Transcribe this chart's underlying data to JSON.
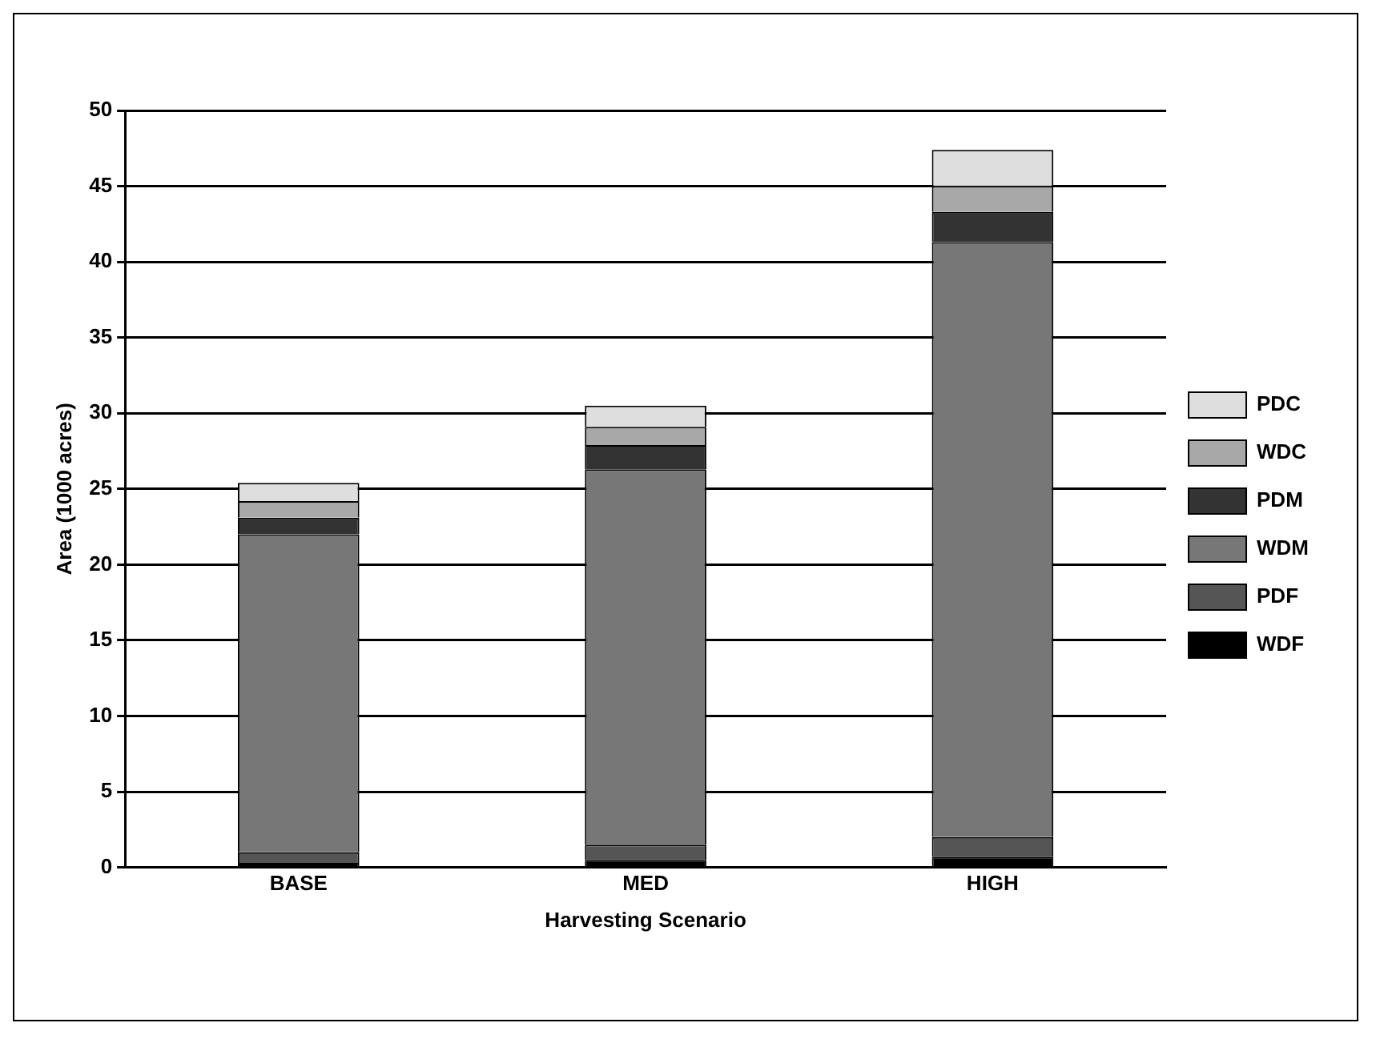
{
  "chart_data": {
    "type": "bar",
    "stacked": true,
    "xlabel": "Harvesting Scenario",
    "ylabel": "Area (1000 acres)",
    "categories": [
      "BASE",
      "MED",
      "HIGH"
    ],
    "series": [
      {
        "name": "WDF",
        "color": "#000000",
        "values": [
          0.3,
          0.5,
          0.7
        ]
      },
      {
        "name": "PDF",
        "color": "#555555",
        "values": [
          0.7,
          1.0,
          1.3
        ]
      },
      {
        "name": "WDM",
        "color": "#777777",
        "values": [
          21.0,
          24.8,
          39.3
        ]
      },
      {
        "name": "PDM",
        "color": "#333333",
        "values": [
          1.1,
          1.6,
          2.0
        ]
      },
      {
        "name": "WDC",
        "color": "#a8a8a8",
        "values": [
          1.1,
          1.2,
          1.7
        ]
      },
      {
        "name": "PDC",
        "color": "#dedede",
        "values": [
          1.2,
          1.4,
          2.4
        ]
      }
    ],
    "ylim": [
      0,
      50
    ],
    "yticks": [
      0,
      5,
      10,
      15,
      20,
      25,
      30,
      35,
      40,
      45,
      50
    ],
    "grid": "y",
    "legend": "right"
  }
}
